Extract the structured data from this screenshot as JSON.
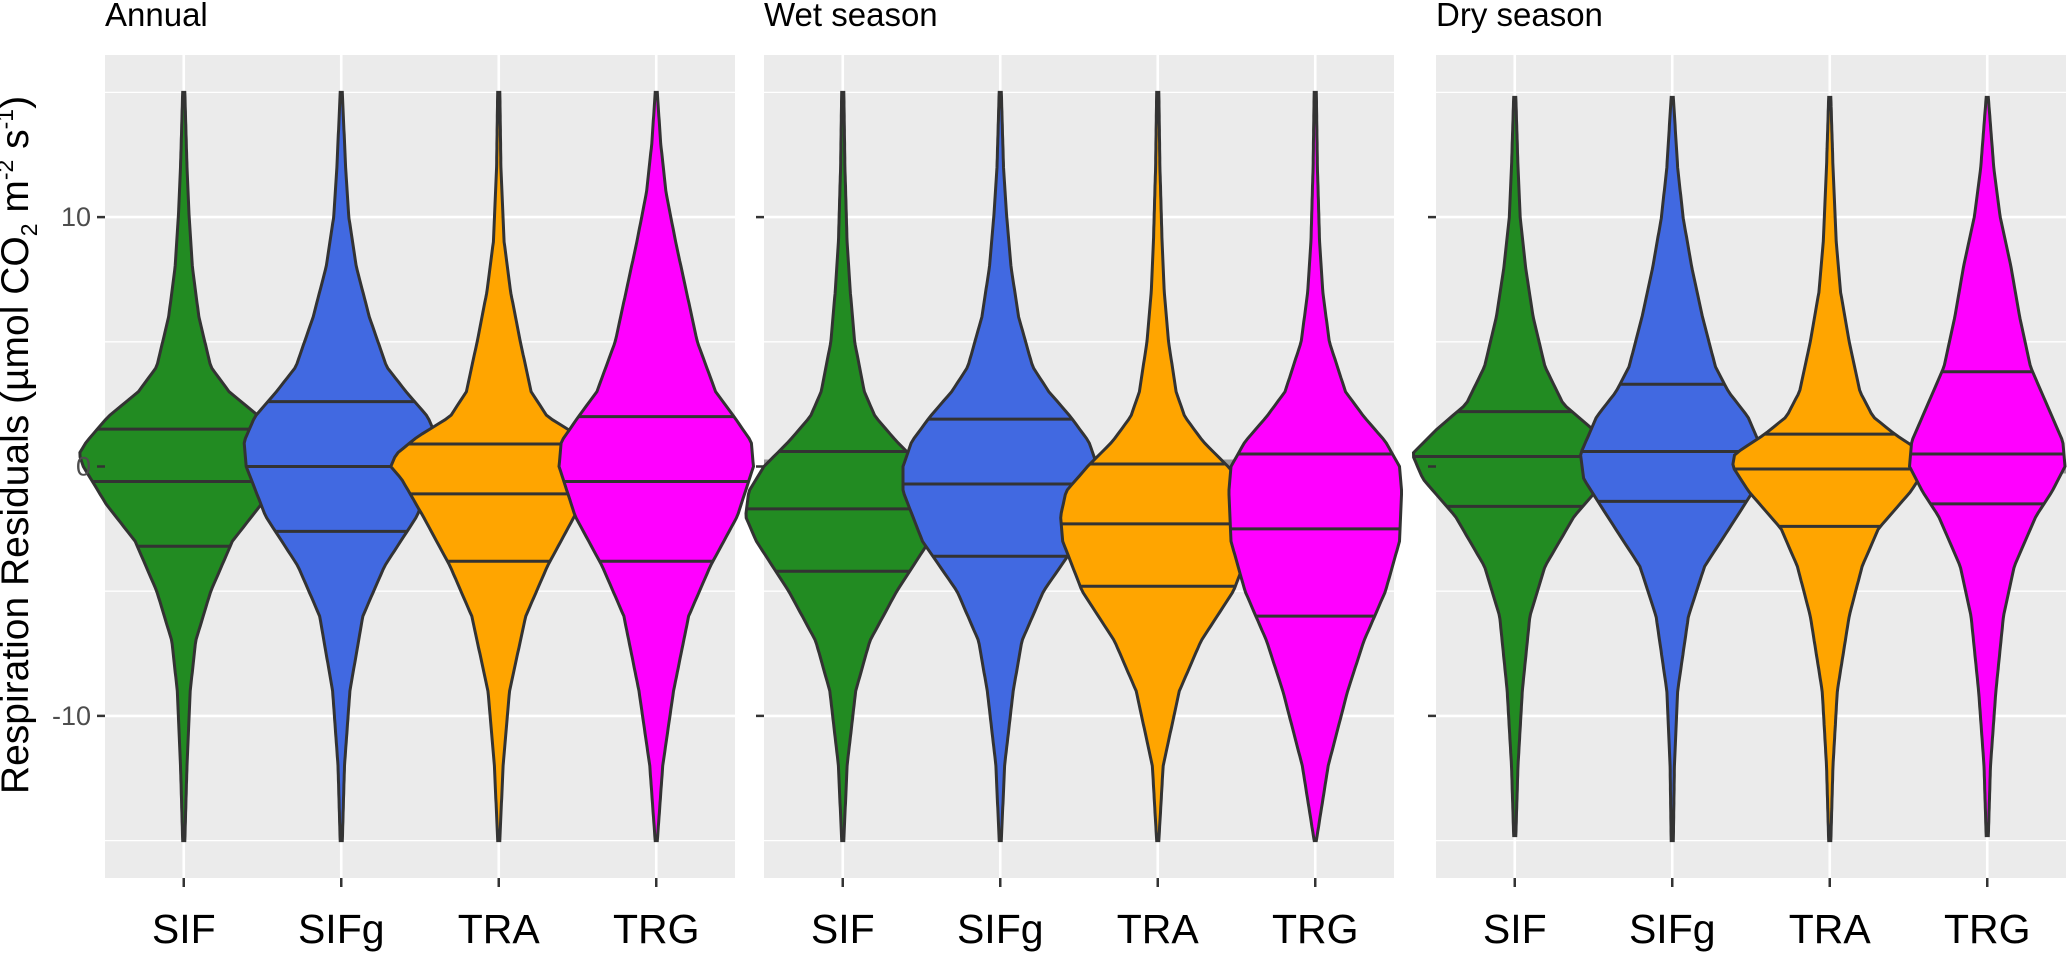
{
  "chart_data": {
    "type": "violin",
    "ylabel": {
      "main": "Respiration Residuals (µmol CO",
      "sub": "2",
      "mid1": " m",
      "sup1": "-2",
      "mid2": " s",
      "sup2": "-1",
      "end": ")"
    },
    "ylim": [
      -16.5,
      16.5
    ],
    "yticks": [
      -10,
      0,
      10
    ],
    "ytick_labels": [
      "-10",
      "0",
      "10"
    ],
    "reference_line": 0,
    "categories": [
      "SIF",
      "SIFg",
      "TRA",
      "TRG"
    ],
    "colors": {
      "SIF": "#228b22",
      "SIFg": "#4169e1",
      "TRA": "#ffa500",
      "TRG": "#ff00ff"
    },
    "panels": [
      {
        "title": "Annual",
        "show_tick_labels": true,
        "violins": [
          {
            "name": "SIF",
            "min": -15,
            "max": 15,
            "q25": -3.2,
            "median": -0.6,
            "q75": 1.5,
            "profile": [
              [
                -15,
                0.01
              ],
              [
                -12,
                0.03
              ],
              [
                -9,
                0.06
              ],
              [
                -7,
                0.11
              ],
              [
                -5,
                0.25
              ],
              [
                -3,
                0.45
              ],
              [
                -1.5,
                0.72
              ],
              [
                0,
                0.93
              ],
              [
                0.5,
                0.97
              ],
              [
                1,
                0.9
              ],
              [
                2,
                0.7
              ],
              [
                3,
                0.42
              ],
              [
                4,
                0.25
              ],
              [
                6,
                0.14
              ],
              [
                8,
                0.08
              ],
              [
                10,
                0.05
              ],
              [
                12,
                0.03
              ],
              [
                15,
                0.01
              ]
            ]
          },
          {
            "name": "SIFg",
            "min": -15,
            "max": 15,
            "q25": -2.6,
            "median": 0,
            "q75": 2.6,
            "profile": [
              [
                -15,
                0.01
              ],
              [
                -12,
                0.03
              ],
              [
                -9,
                0.08
              ],
              [
                -6,
                0.2
              ],
              [
                -4,
                0.4
              ],
              [
                -2,
                0.7
              ],
              [
                0,
                0.88
              ],
              [
                1,
                0.9
              ],
              [
                2,
                0.8
              ],
              [
                3,
                0.6
              ],
              [
                4,
                0.42
              ],
              [
                6,
                0.26
              ],
              [
                8,
                0.14
              ],
              [
                10,
                0.07
              ],
              [
                12,
                0.04
              ],
              [
                15,
                0.01
              ]
            ]
          },
          {
            "name": "TRA",
            "min": -15,
            "max": 15,
            "q25": -3.8,
            "median": -1.1,
            "q75": 0.9,
            "profile": [
              [
                -15,
                0.01
              ],
              [
                -12,
                0.04
              ],
              [
                -9,
                0.1
              ],
              [
                -6,
                0.25
              ],
              [
                -4,
                0.45
              ],
              [
                -2,
                0.7
              ],
              [
                -0.5,
                0.9
              ],
              [
                0,
                1.0
              ],
              [
                0.5,
                0.95
              ],
              [
                1.2,
                0.75
              ],
              [
                2,
                0.45
              ],
              [
                3,
                0.3
              ],
              [
                5,
                0.2
              ],
              [
                7,
                0.11
              ],
              [
                9,
                0.05
              ],
              [
                12,
                0.02
              ],
              [
                15,
                0.01
              ]
            ]
          },
          {
            "name": "TRG",
            "min": -15,
            "max": 15,
            "q25": -3.8,
            "median": -0.6,
            "q75": 2.0,
            "profile": [
              [
                -15,
                0.01
              ],
              [
                -12,
                0.06
              ],
              [
                -9,
                0.16
              ],
              [
                -6,
                0.3
              ],
              [
                -4,
                0.5
              ],
              [
                -2,
                0.75
              ],
              [
                0,
                0.9
              ],
              [
                1,
                0.88
              ],
              [
                2,
                0.72
              ],
              [
                3,
                0.55
              ],
              [
                5,
                0.38
              ],
              [
                7,
                0.28
              ],
              [
                9,
                0.18
              ],
              [
                11,
                0.09
              ],
              [
                13,
                0.04
              ],
              [
                15,
                0.01
              ]
            ]
          }
        ]
      },
      {
        "title": "Wet season",
        "show_tick_labels": false,
        "violins": [
          {
            "name": "SIF",
            "min": -15,
            "max": 15,
            "q25": -4.2,
            "median": -1.7,
            "q75": 0.6,
            "profile": [
              [
                -15,
                0.01
              ],
              [
                -12,
                0.04
              ],
              [
                -9,
                0.12
              ],
              [
                -7,
                0.25
              ],
              [
                -5,
                0.5
              ],
              [
                -3,
                0.8
              ],
              [
                -2,
                0.9
              ],
              [
                -1,
                0.87
              ],
              [
                0,
                0.73
              ],
              [
                1,
                0.5
              ],
              [
                2,
                0.3
              ],
              [
                3,
                0.2
              ],
              [
                5,
                0.11
              ],
              [
                7,
                0.07
              ],
              [
                9,
                0.04
              ],
              [
                12,
                0.02
              ],
              [
                15,
                0.01
              ]
            ]
          },
          {
            "name": "SIFg",
            "min": -15,
            "max": 15,
            "q25": -3.6,
            "median": -0.7,
            "q75": 1.9,
            "profile": [
              [
                -15,
                0.01
              ],
              [
                -12,
                0.04
              ],
              [
                -9,
                0.12
              ],
              [
                -7,
                0.2
              ],
              [
                -5,
                0.4
              ],
              [
                -3,
                0.72
              ],
              [
                -1,
                0.9
              ],
              [
                0,
                0.9
              ],
              [
                1,
                0.82
              ],
              [
                2,
                0.65
              ],
              [
                3,
                0.45
              ],
              [
                4,
                0.3
              ],
              [
                6,
                0.17
              ],
              [
                8,
                0.1
              ],
              [
                10,
                0.06
              ],
              [
                12,
                0.03
              ],
              [
                15,
                0.01
              ]
            ]
          },
          {
            "name": "TRA",
            "min": -15,
            "max": 15,
            "q25": -4.8,
            "median": -2.3,
            "q75": 0.1,
            "profile": [
              [
                -15,
                0.01
              ],
              [
                -12,
                0.05
              ],
              [
                -9,
                0.2
              ],
              [
                -7,
                0.4
              ],
              [
                -5,
                0.7
              ],
              [
                -3,
                0.88
              ],
              [
                -2,
                0.9
              ],
              [
                -1,
                0.85
              ],
              [
                0,
                0.65
              ],
              [
                1,
                0.42
              ],
              [
                2,
                0.25
              ],
              [
                3,
                0.17
              ],
              [
                5,
                0.1
              ],
              [
                7,
                0.06
              ],
              [
                9,
                0.04
              ],
              [
                12,
                0.02
              ],
              [
                15,
                0.01
              ]
            ]
          },
          {
            "name": "TRG",
            "min": -15,
            "max": 15,
            "q25": -6.0,
            "median": -2.5,
            "q75": 0.5,
            "profile": [
              [
                -15,
                0.01
              ],
              [
                -12,
                0.12
              ],
              [
                -9,
                0.3
              ],
              [
                -7,
                0.45
              ],
              [
                -5,
                0.65
              ],
              [
                -3,
                0.78
              ],
              [
                -1,
                0.8
              ],
              [
                0,
                0.78
              ],
              [
                1,
                0.65
              ],
              [
                2,
                0.45
              ],
              [
                3,
                0.28
              ],
              [
                5,
                0.13
              ],
              [
                7,
                0.07
              ],
              [
                9,
                0.04
              ],
              [
                12,
                0.02
              ],
              [
                15,
                0.01
              ]
            ]
          }
        ]
      },
      {
        "title": "Dry season",
        "show_tick_labels": false,
        "violins": [
          {
            "name": "SIF",
            "min": -14.8,
            "max": 14.8,
            "q25": -1.6,
            "median": 0.4,
            "q75": 2.2,
            "profile": [
              [
                -14.8,
                0.01
              ],
              [
                -12,
                0.03
              ],
              [
                -9,
                0.07
              ],
              [
                -6,
                0.14
              ],
              [
                -4,
                0.28
              ],
              [
                -2,
                0.55
              ],
              [
                -0.5,
                0.85
              ],
              [
                0.5,
                0.95
              ],
              [
                1.5,
                0.72
              ],
              [
                2.5,
                0.45
              ],
              [
                4,
                0.28
              ],
              [
                6,
                0.17
              ],
              [
                8,
                0.1
              ],
              [
                10,
                0.05
              ],
              [
                12,
                0.03
              ],
              [
                14.8,
                0.01
              ]
            ]
          },
          {
            "name": "SIFg",
            "min": -15,
            "max": 14.8,
            "q25": -1.4,
            "median": 0.6,
            "q75": 3.3,
            "profile": [
              [
                -15,
                0.01
              ],
              [
                -12,
                0.02
              ],
              [
                -9,
                0.05
              ],
              [
                -6,
                0.15
              ],
              [
                -4,
                0.3
              ],
              [
                -2,
                0.6
              ],
              [
                -0.5,
                0.82
              ],
              [
                0.5,
                0.85
              ],
              [
                2,
                0.7
              ],
              [
                3,
                0.52
              ],
              [
                4,
                0.4
              ],
              [
                6,
                0.28
              ],
              [
                8,
                0.18
              ],
              [
                10,
                0.1
              ],
              [
                12,
                0.05
              ],
              [
                14.8,
                0.01
              ]
            ]
          },
          {
            "name": "TRA",
            "min": -15,
            "max": 14.8,
            "q25": -2.4,
            "median": -0.1,
            "q75": 1.3,
            "profile": [
              [
                -15,
                0.01
              ],
              [
                -12,
                0.03
              ],
              [
                -9,
                0.07
              ],
              [
                -6,
                0.18
              ],
              [
                -4,
                0.3
              ],
              [
                -2.5,
                0.45
              ],
              [
                -1,
                0.75
              ],
              [
                0,
                0.9
              ],
              [
                0.5,
                0.88
              ],
              [
                1.3,
                0.6
              ],
              [
                2,
                0.4
              ],
              [
                3,
                0.28
              ],
              [
                5,
                0.18
              ],
              [
                7,
                0.1
              ],
              [
                9,
                0.06
              ],
              [
                12,
                0.03
              ],
              [
                14.8,
                0.01
              ]
            ]
          },
          {
            "name": "TRG",
            "min": -14.8,
            "max": 14.8,
            "q25": -1.5,
            "median": 0.5,
            "q75": 3.8,
            "profile": [
              [
                -14.8,
                0.01
              ],
              [
                -12,
                0.03
              ],
              [
                -9,
                0.08
              ],
              [
                -6,
                0.15
              ],
              [
                -4,
                0.25
              ],
              [
                -2,
                0.45
              ],
              [
                -1,
                0.6
              ],
              [
                0,
                0.72
              ],
              [
                1,
                0.7
              ],
              [
                2,
                0.6
              ],
              [
                3,
                0.5
              ],
              [
                4,
                0.4
              ],
              [
                6,
                0.3
              ],
              [
                8,
                0.22
              ],
              [
                10,
                0.12
              ],
              [
                12,
                0.06
              ],
              [
                14.8,
                0.01
              ]
            ]
          }
        ]
      }
    ]
  }
}
